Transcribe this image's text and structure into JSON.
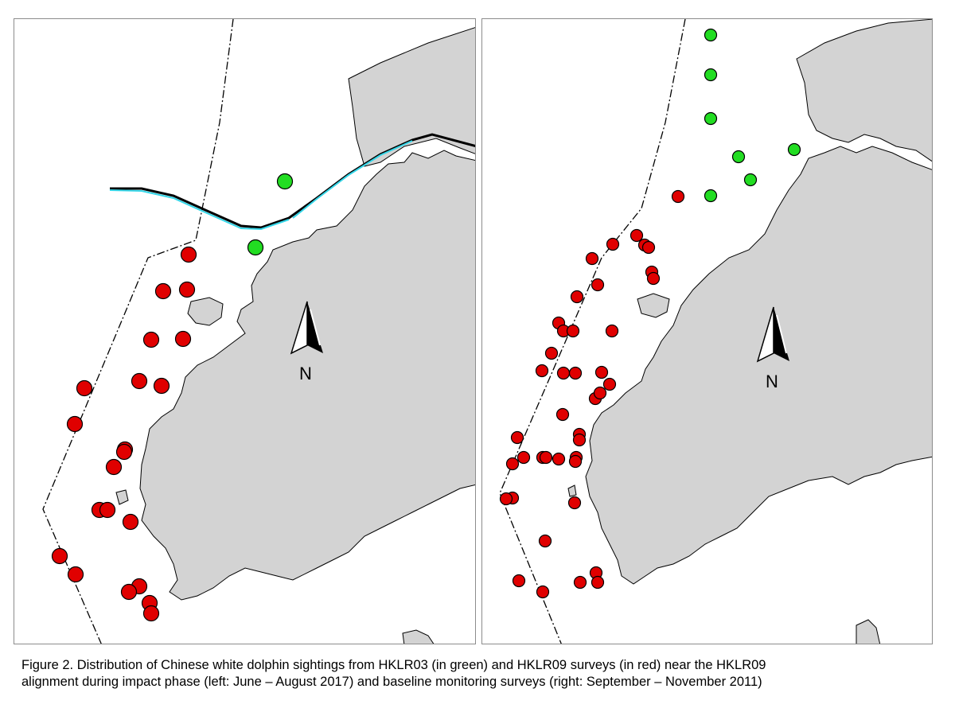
{
  "maps": [
    {
      "id": "left",
      "north_label": "N",
      "legend": {
        "green": "HKLR03",
        "red": "HKLR09"
      },
      "colors": {
        "green": "#22dd22",
        "red": "#e00000",
        "land": "#d3d3d3",
        "alignment": "#35d6e8"
      }
    },
    {
      "id": "right",
      "north_label": "N",
      "colors": {
        "green": "#22dd22",
        "red": "#e00000",
        "land": "#d3d3d3"
      }
    }
  ],
  "caption": {
    "line1": "Figure 2.  Distribution of Chinese white dolphin sightings from HKLR03 (in green) and HKLR09 surveys (in red) near the HKLR09",
    "line2": "alignment during impact phase (left: June – August 2017) and baseline monitoring surveys (right: September – November 2011)"
  }
}
